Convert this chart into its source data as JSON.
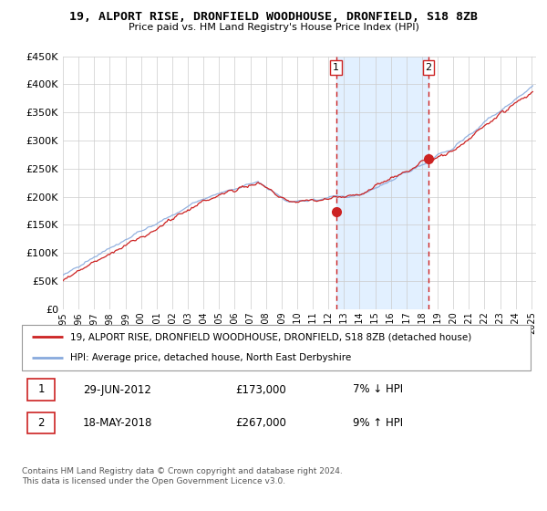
{
  "title": "19, ALPORT RISE, DRONFIELD WOODHOUSE, DRONFIELD, S18 8ZB",
  "subtitle": "Price paid vs. HM Land Registry's House Price Index (HPI)",
  "legend_line1": "19, ALPORT RISE, DRONFIELD WOODHOUSE, DRONFIELD, S18 8ZB (detached house)",
  "legend_line2": "HPI: Average price, detached house, North East Derbyshire",
  "transaction1_date": "29-JUN-2012",
  "transaction1_price": 173000,
  "transaction1_price_str": "£173,000",
  "transaction1_pct": "7% ↓ HPI",
  "transaction2_date": "18-MAY-2018",
  "transaction2_price": 267000,
  "transaction2_price_str": "£267,000",
  "transaction2_pct": "9% ↑ HPI",
  "footer": "Contains HM Land Registry data © Crown copyright and database right 2024.\nThis data is licensed under the Open Government Licence v3.0.",
  "hpi_color": "#88aadd",
  "price_color": "#cc2222",
  "marker_color": "#cc2222",
  "vline_color": "#cc2222",
  "bg_highlight_color": "#ddeeff",
  "ylim": [
    0,
    450000
  ],
  "yticks": [
    0,
    50000,
    100000,
    150000,
    200000,
    250000,
    300000,
    350000,
    400000,
    450000
  ],
  "start_year": 1995,
  "end_year": 2025,
  "transaction1_year": 2012.5,
  "transaction2_year": 2018.42
}
